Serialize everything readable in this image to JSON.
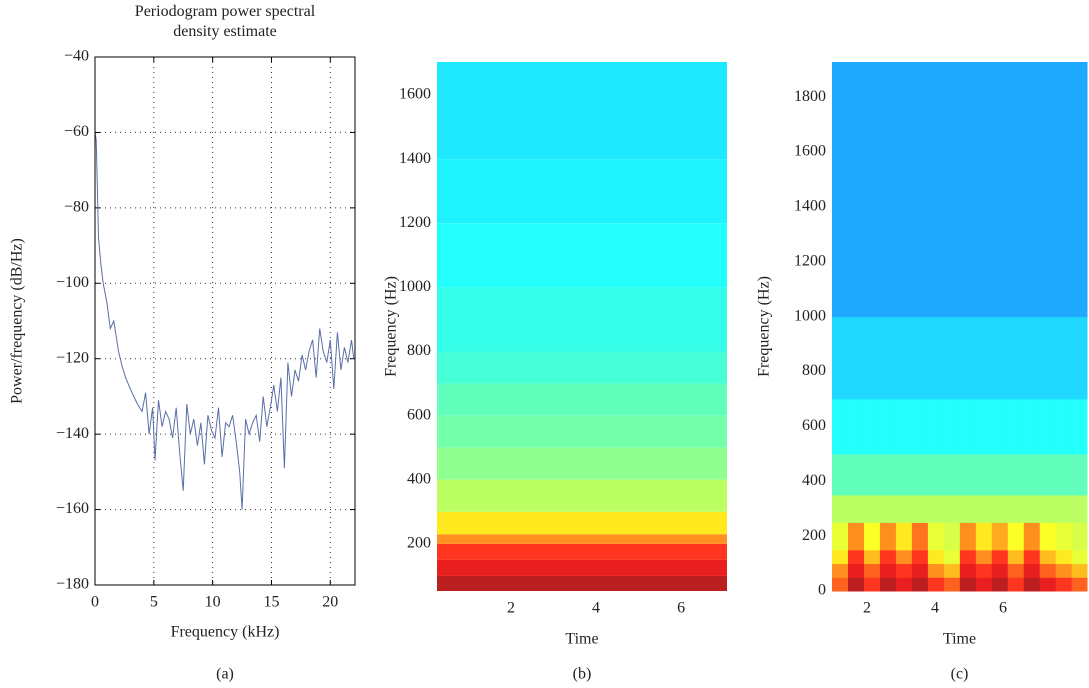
{
  "chart_data": [
    {
      "type": "line",
      "title": "Periodogram power spectral density estimate",
      "xlabel": "Frequency (kHz)",
      "ylabel": "Power/frequency (dB/Hz)",
      "caption": "(a)",
      "color": "#5a6fa8",
      "grid": true,
      "xlim": [
        0,
        22.1
      ],
      "xticks": [
        0,
        5,
        10,
        15,
        20
      ],
      "ylim": [
        -180,
        -40
      ],
      "yticks": [
        {
          "value": -180,
          "label": "−180"
        },
        {
          "value": -160,
          "label": "−160"
        },
        {
          "value": -140,
          "label": "−140"
        },
        {
          "value": -120,
          "label": "−120"
        },
        {
          "value": -100,
          "label": "−100"
        },
        {
          "value": -80,
          "label": "−80"
        },
        {
          "value": -60,
          "label": "−60"
        },
        {
          "value": -40,
          "label": "−40"
        }
      ],
      "x": [
        0,
        0.1,
        0.2,
        0.3,
        0.5,
        0.7,
        1,
        1.3,
        1.6,
        2,
        2.3,
        2.6,
        3,
        3.3,
        3.6,
        4,
        4.3,
        4.6,
        4.9,
        5.1,
        5.4,
        5.7,
        6,
        6.3,
        6.6,
        6.9,
        7.2,
        7.5,
        7.8,
        8.1,
        8.4,
        8.7,
        9,
        9.3,
        9.6,
        9.9,
        10.2,
        10.5,
        10.8,
        11.1,
        11.4,
        11.7,
        12,
        12.3,
        12.5,
        12.8,
        13.1,
        13.4,
        13.7,
        14,
        14.3,
        14.6,
        14.9,
        15.2,
        15.5,
        15.8,
        16.1,
        16.4,
        16.7,
        17,
        17.3,
        17.6,
        17.9,
        18.2,
        18.5,
        18.8,
        19.1,
        19.4,
        19.7,
        20,
        20.3,
        20.6,
        20.9,
        21.2,
        21.5,
        21.8,
        22
      ],
      "y": [
        -60,
        -62,
        -75,
        -88,
        -95,
        -100,
        -105,
        -112,
        -110,
        -118,
        -122,
        -125,
        -128,
        -130,
        -132,
        -134,
        -129,
        -140,
        -133,
        -147,
        -131,
        -138,
        -134,
        -136,
        -141,
        -133,
        -145,
        -155,
        -132,
        -140,
        -136,
        -143,
        -137,
        -148,
        -135,
        -139,
        -141,
        -133,
        -146,
        -137,
        -138,
        -135,
        -142,
        -150,
        -160,
        -136,
        -140,
        -137,
        -135,
        -142,
        -130,
        -138,
        -133,
        -127,
        -134,
        -125,
        -149,
        -121,
        -130,
        -123,
        -126,
        -119,
        -123,
        -118,
        -115,
        -125,
        -112,
        -118,
        -121,
        -115,
        -128,
        -113,
        -123,
        -117,
        -121,
        -115,
        -120
      ]
    },
    {
      "type": "bands",
      "xlabel": "Time",
      "ylabel": "Frequency (Hz)",
      "caption": "(b)",
      "colormap": "jet",
      "xlim": [
        0.26,
        7.08
      ],
      "xticks": [
        2,
        4,
        6
      ],
      "ylim": [
        53,
        1703
      ],
      "yticks": [
        200,
        400,
        600,
        800,
        1000,
        1200,
        1400,
        1600
      ],
      "ybins": [
        53,
        100,
        150,
        200,
        230,
        300,
        400,
        500,
        600,
        700,
        800,
        1000,
        1200,
        1400,
        1703
      ],
      "levels": [
        0.95,
        0.9,
        0.85,
        0.75,
        0.65,
        0.55,
        0.5,
        0.47,
        0.45,
        0.42,
        0.4,
        0.38,
        0.36,
        0.35
      ]
    },
    {
      "type": "heatmap",
      "xlabel": "Time",
      "ylabel": "Frequency (Hz)",
      "caption": "(c)",
      "colormap": "jet",
      "xlim": [
        0.97,
        8.47
      ],
      "xticks": [
        2,
        4,
        6
      ],
      "ylim": [
        0,
        1928
      ],
      "yticks": [
        0,
        200,
        400,
        600,
        800,
        1000,
        1200,
        1400,
        1600,
        1800
      ],
      "xbins": [
        0.97,
        1.44,
        1.91,
        2.38,
        2.85,
        3.32,
        3.79,
        4.26,
        4.73,
        5.2,
        5.67,
        6.14,
        6.61,
        7.08,
        7.55,
        8.02,
        8.47
      ],
      "ybins": [
        0,
        50,
        100,
        150,
        250,
        350,
        500,
        700,
        1000,
        1928
      ],
      "levels": [
        [
          0.8,
          0.95,
          0.85,
          0.95,
          0.9,
          0.95,
          0.85,
          0.8,
          0.95,
          0.9,
          0.95,
          0.85,
          0.95,
          0.9,
          0.85,
          0.8
        ],
        [
          0.75,
          0.9,
          0.8,
          0.9,
          0.85,
          0.9,
          0.75,
          0.7,
          0.9,
          0.85,
          0.9,
          0.8,
          0.9,
          0.8,
          0.75,
          0.7
        ],
        [
          0.65,
          0.85,
          0.7,
          0.85,
          0.75,
          0.85,
          0.65,
          0.6,
          0.85,
          0.75,
          0.85,
          0.7,
          0.85,
          0.7,
          0.65,
          0.6
        ],
        [
          0.6,
          0.75,
          0.62,
          0.75,
          0.65,
          0.78,
          0.6,
          0.58,
          0.75,
          0.65,
          0.72,
          0.62,
          0.75,
          0.62,
          0.6,
          0.58
        ],
        [
          0.55,
          0.55,
          0.55,
          0.55,
          0.55,
          0.55,
          0.55,
          0.55,
          0.55,
          0.55,
          0.55,
          0.55,
          0.55,
          0.55,
          0.55,
          0.55
        ],
        [
          0.45,
          0.45,
          0.45,
          0.45,
          0.45,
          0.45,
          0.45,
          0.45,
          0.45,
          0.45,
          0.45,
          0.45,
          0.45,
          0.45,
          0.45,
          0.45
        ],
        [
          0.38,
          0.38,
          0.38,
          0.38,
          0.38,
          0.38,
          0.38,
          0.38,
          0.38,
          0.38,
          0.38,
          0.38,
          0.38,
          0.38,
          0.38,
          0.38
        ],
        [
          0.33,
          0.33,
          0.33,
          0.33,
          0.33,
          0.33,
          0.33,
          0.33,
          0.33,
          0.33,
          0.33,
          0.33,
          0.33,
          0.33,
          0.33,
          0.33
        ],
        [
          0.28,
          0.28,
          0.28,
          0.28,
          0.28,
          0.28,
          0.28,
          0.28,
          0.28,
          0.28,
          0.28,
          0.28,
          0.28,
          0.28,
          0.28,
          0.28
        ]
      ]
    }
  ]
}
